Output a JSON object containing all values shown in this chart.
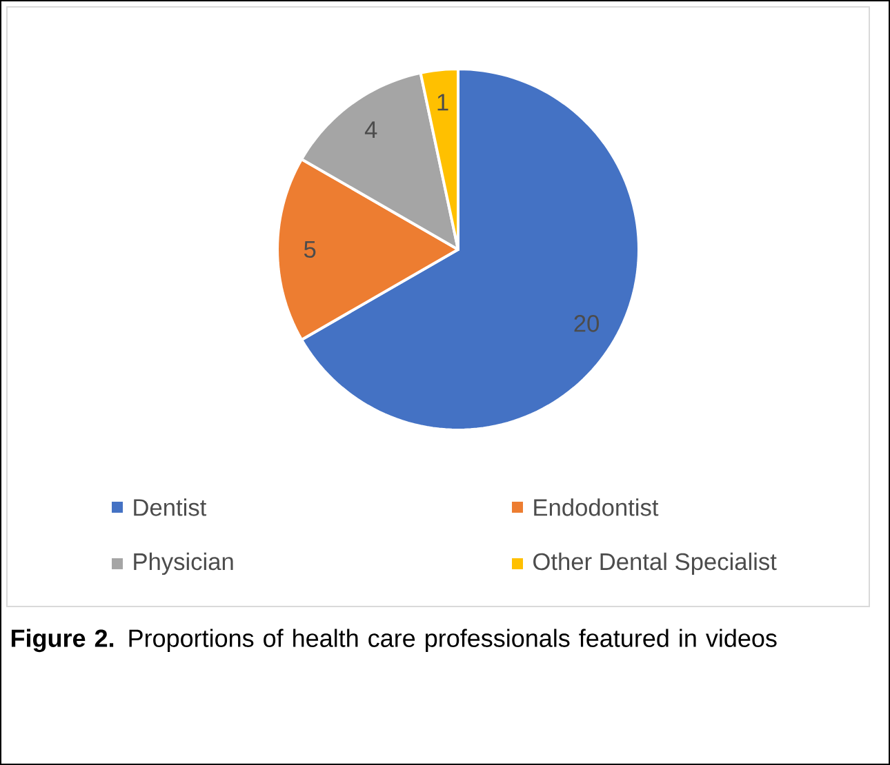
{
  "chart_data": {
    "type": "pie",
    "categories": [
      "Dentist",
      "Endodontist",
      "Physician",
      "Other Dental Specialist"
    ],
    "values": [
      20,
      5,
      4,
      1
    ],
    "colors": [
      "#4472c4",
      "#ed7d31",
      "#a5a5a5",
      "#ffc000"
    ],
    "data_labels": true,
    "legend": "bottom",
    "annotations": [
      "**Figure 2.** Proportions of health care professionals featured in videos"
    ]
  }
}
